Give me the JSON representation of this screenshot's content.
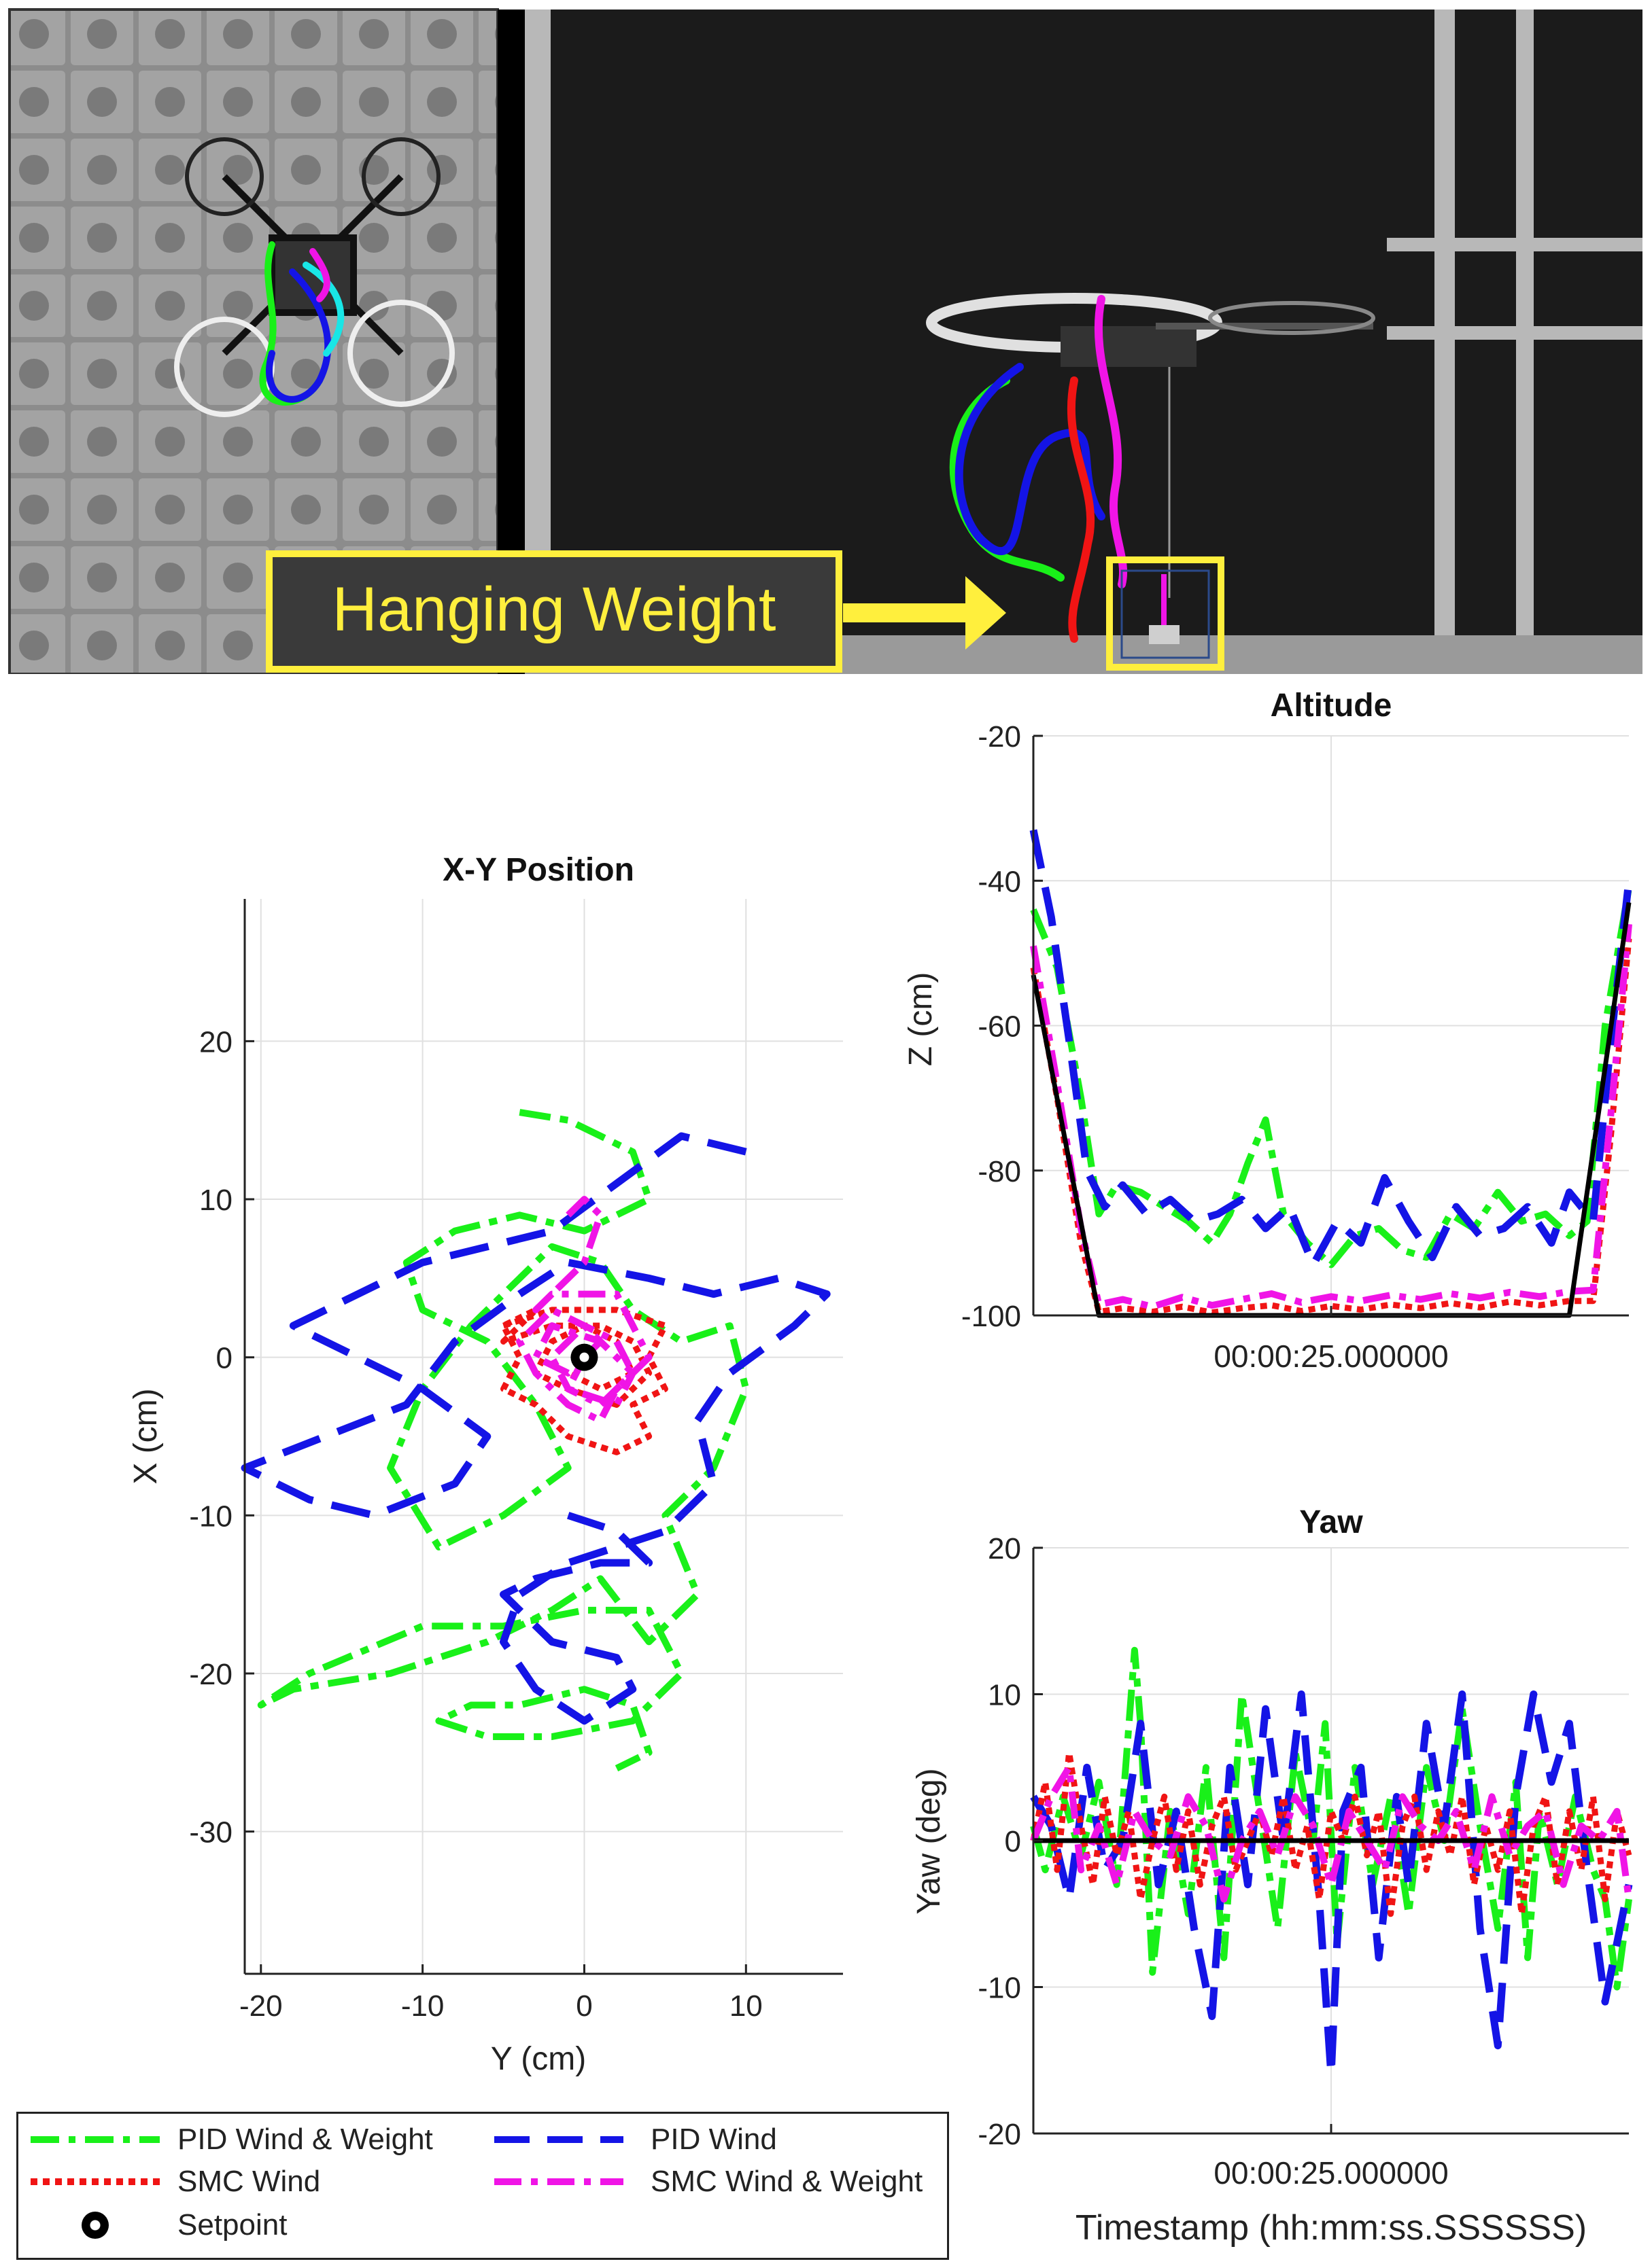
{
  "photo": {
    "callout_label": "Hanging Weight",
    "callout_color": "#ffef3d"
  },
  "colors": {
    "pid_wind_weight": "#19f019",
    "pid_wind": "#1414e6",
    "smc_wind": "#f01414",
    "smc_wind_weight": "#f014e6",
    "setpoint": "#000000"
  },
  "chart_data": [
    {
      "id": "xy",
      "type": "line",
      "title": "X-Y Position",
      "xlabel": "Y (cm)",
      "ylabel": "X (cm)",
      "xlim": [
        -21,
        16
      ],
      "ylim": [
        -39,
        29
      ],
      "xticks": [
        -20,
        -10,
        0,
        10
      ],
      "yticks": [
        20,
        10,
        0,
        -10,
        -20,
        -30
      ],
      "grid": true,
      "setpoint": {
        "x": 0,
        "y": 0
      },
      "series": [
        {
          "name": "PID Wind & Weight",
          "key": "pid_wind_weight",
          "x": [
            -4,
            -1,
            3,
            4,
            0,
            -4,
            -8,
            -11,
            -10,
            -6,
            -3,
            -1,
            -5,
            -9,
            -12,
            -10,
            -7,
            -4,
            -2,
            1,
            3,
            6,
            9,
            10,
            8,
            5,
            7,
            4,
            1,
            -2,
            -6,
            -12,
            -18,
            -20,
            -17,
            -10,
            -5,
            0,
            4,
            6,
            3,
            -2,
            -6,
            -9,
            -7,
            -4,
            0,
            3,
            4,
            2
          ],
          "y": [
            15.5,
            15,
            13,
            10,
            8,
            9,
            8,
            6,
            3,
            1,
            -3,
            -7,
            -10,
            -12,
            -7,
            -2,
            2,
            5,
            7,
            6,
            3,
            1,
            2,
            -2,
            -7,
            -10,
            -15,
            -18,
            -14,
            -16,
            -18,
            -20,
            -21,
            -22,
            -20,
            -17,
            -17,
            -16,
            -16,
            -20,
            -23,
            -24,
            -24,
            -23,
            -22,
            -22,
            -21,
            -22,
            -25,
            -26
          ]
        },
        {
          "name": "PID Wind",
          "key": "pid_wind",
          "x": [
            10,
            6,
            2,
            -2,
            -6,
            -10,
            -16,
            -18,
            -14,
            -10,
            -6,
            -8,
            -13,
            -17,
            -21,
            -16,
            -11,
            -8,
            -4,
            -1,
            4,
            8,
            12,
            15,
            13,
            9,
            7,
            8,
            5,
            2,
            -1,
            -4,
            -5,
            -3,
            0,
            3,
            2,
            -2,
            -4,
            -5,
            -3,
            1,
            4,
            2,
            -1
          ],
          "y": [
            13,
            14,
            11,
            8,
            7,
            6,
            3,
            2,
            0,
            -2,
            -5,
            -8,
            -10,
            -9,
            -7,
            -5,
            -3,
            1,
            4,
            6,
            5,
            4,
            5,
            4,
            2,
            -1,
            -4,
            -8,
            -11,
            -12,
            -13,
            -15,
            -18,
            -21,
            -23,
            -21,
            -19,
            -18,
            -16,
            -15,
            -14,
            -13,
            -13,
            -11,
            -10
          ]
        },
        {
          "name": "SMC Wind",
          "key": "smc_wind",
          "x": [
            -5,
            -2,
            2,
            5,
            4,
            5,
            3,
            4,
            2,
            -1,
            -3,
            -5,
            -4,
            -5,
            -3,
            -5,
            -2,
            1,
            3,
            4,
            2,
            -1,
            -3,
            -2,
            0,
            2,
            3,
            1,
            -1
          ],
          "y": [
            2,
            3,
            3,
            2,
            0,
            -2,
            -3,
            -5,
            -6,
            -5,
            -3,
            -2,
            0,
            2,
            3,
            1,
            2,
            2,
            1,
            -1,
            -3,
            -2,
            -1,
            1,
            2,
            1,
            -1,
            -2,
            -1
          ]
        },
        {
          "name": "SMC Wind & Weight",
          "key": "smc_wind_weight",
          "x": [
            -1,
            0,
            1,
            0,
            -3,
            -2,
            2,
            3,
            4,
            2,
            1,
            -1,
            -3,
            -4,
            -2,
            0,
            2,
            3,
            1,
            -1,
            -2,
            0,
            1,
            -1,
            -3,
            -2,
            1,
            3,
            2,
            -1,
            0
          ],
          "y": [
            9,
            10,
            9,
            6,
            3,
            4,
            4,
            2,
            0,
            -2,
            -4,
            -3,
            -1,
            1,
            3,
            2,
            1,
            -1,
            -3,
            -2,
            0,
            2,
            1,
            -1,
            0,
            2,
            1,
            -1,
            -3,
            -2,
            0
          ]
        }
      ]
    },
    {
      "id": "alt",
      "type": "line",
      "title": "Altitude",
      "xlabel": "00:00:25.000000",
      "ylabel": "Z (cm)",
      "xlim": [
        0,
        100
      ],
      "ylim": [
        -100,
        -20
      ],
      "yticks": [
        -20,
        -40,
        -60,
        -80,
        -100
      ],
      "grid": true,
      "series": [
        {
          "name": "PID Wind & Weight",
          "key": "pid_wind_weight",
          "x": [
            0,
            4,
            8,
            11,
            14,
            18,
            22,
            26,
            30,
            33,
            36,
            39,
            42,
            46,
            50,
            54,
            58,
            62,
            66,
            70,
            74,
            78,
            82,
            86,
            90,
            93,
            96,
            100
          ],
          "y": [
            -44,
            -52,
            -70,
            -86,
            -82,
            -83,
            -85,
            -87,
            -90,
            -86,
            -79,
            -73,
            -86,
            -90,
            -93,
            -89,
            -88,
            -91,
            -92,
            -86,
            -88,
            -83,
            -87,
            -86,
            -89,
            -87,
            -60,
            -41
          ]
        },
        {
          "name": "PID Wind",
          "key": "pid_wind",
          "x": [
            0,
            3,
            6,
            9,
            12,
            15,
            19,
            23,
            27,
            31,
            35,
            39,
            43,
            47,
            51,
            55,
            59,
            63,
            67,
            71,
            75,
            79,
            83,
            87,
            90,
            94,
            97,
            100
          ],
          "y": [
            -33,
            -45,
            -62,
            -80,
            -85,
            -82,
            -86,
            -84,
            -87,
            -86,
            -84,
            -88,
            -85,
            -93,
            -87,
            -90,
            -81,
            -87,
            -92,
            -85,
            -89,
            -88,
            -85,
            -90,
            -83,
            -87,
            -62,
            -40
          ]
        },
        {
          "name": "SMC Wind",
          "key": "smc_wind",
          "x": [
            0,
            4,
            8,
            11,
            15,
            20,
            25,
            30,
            35,
            40,
            45,
            50,
            55,
            60,
            65,
            70,
            75,
            80,
            85,
            90,
            94,
            97,
            100
          ],
          "y": [
            -52,
            -70,
            -90,
            -99.5,
            -99,
            -99.5,
            -98.8,
            -99.6,
            -99,
            -98.6,
            -99.4,
            -98.7,
            -99.2,
            -98.5,
            -99,
            -98.3,
            -98.9,
            -98.1,
            -98.6,
            -98,
            -98,
            -75,
            -48
          ]
        },
        {
          "name": "SMC Wind & Weight",
          "key": "smc_wind_weight",
          "x": [
            0,
            4,
            8,
            11,
            15,
            20,
            25,
            30,
            35,
            40,
            45,
            50,
            55,
            60,
            65,
            70,
            75,
            80,
            85,
            90,
            94,
            97,
            100
          ],
          "y": [
            -49,
            -68,
            -88,
            -98.5,
            -97.8,
            -98.8,
            -97.5,
            -98.6,
            -97.8,
            -97,
            -98.2,
            -97.4,
            -98,
            -97.2,
            -97.8,
            -97,
            -97.6,
            -96.8,
            -97.4,
            -96.7,
            -96.5,
            -72,
            -46
          ]
        },
        {
          "name": "Setpoint",
          "key": "setpoint",
          "x": [
            0,
            11,
            90,
            100
          ],
          "y": [
            -53,
            -100,
            -100,
            -43
          ]
        }
      ]
    },
    {
      "id": "yaw",
      "type": "line",
      "title": "Yaw",
      "xlabel": "00:00:25.000000",
      "xlabel2": "Timestamp (hh:mm:ss.SSSSSS)",
      "ylabel": "Yaw (deg)",
      "xlim": [
        0,
        100
      ],
      "ylim": [
        -20,
        20
      ],
      "yticks": [
        20,
        10,
        0,
        -10,
        -20
      ],
      "grid": true,
      "series": [
        {
          "name": "PID Wind & Weight",
          "key": "pid_wind_weight",
          "x": [
            0,
            2,
            5,
            8,
            11,
            14,
            17,
            18,
            20,
            23,
            26,
            29,
            32,
            35,
            38,
            41,
            44,
            47,
            49,
            51,
            54,
            57,
            60,
            63,
            66,
            69,
            72,
            75,
            78,
            81,
            83,
            85,
            88,
            91,
            94,
            96,
            98,
            100
          ],
          "y": [
            1,
            -2,
            3,
            -1,
            4,
            -3,
            13,
            8,
            -9,
            2,
            -5,
            5,
            -8,
            10,
            2,
            -6,
            6,
            0,
            8,
            -7,
            5,
            -3,
            3,
            -5,
            5,
            0,
            9,
            1,
            -6,
            4,
            -8,
            2,
            -3,
            3,
            -2,
            -4,
            -10,
            -4
          ]
        },
        {
          "name": "PID Wind",
          "key": "pid_wind",
          "x": [
            0,
            3,
            6,
            9,
            12,
            15,
            18,
            21,
            24,
            27,
            30,
            33,
            36,
            39,
            42,
            45,
            48,
            50,
            52,
            55,
            58,
            61,
            63,
            66,
            69,
            72,
            75,
            78,
            81,
            84,
            87,
            90,
            93,
            96,
            99,
            100
          ],
          "y": [
            3,
            1,
            -4,
            5,
            -2,
            0,
            8,
            -3,
            2,
            -6,
            -12,
            5,
            -3,
            9,
            0,
            10,
            -4,
            -16,
            2,
            5,
            -8,
            3,
            -3,
            8,
            1,
            10,
            -6,
            -14,
            3,
            10,
            4,
            8,
            -2,
            -11,
            -5,
            -3
          ]
        },
        {
          "name": "SMC Wind",
          "key": "smc_wind",
          "x": [
            0,
            2,
            4,
            6,
            8,
            10,
            12,
            14,
            16,
            18,
            20,
            22,
            24,
            26,
            28,
            30,
            32,
            34,
            36,
            38,
            40,
            42,
            44,
            46,
            48,
            50,
            52,
            54,
            56,
            58,
            60,
            62,
            64,
            66,
            68,
            70,
            72,
            74,
            76,
            78,
            80,
            82,
            84,
            86,
            88,
            90,
            92,
            94,
            96,
            98,
            100
          ],
          "y": [
            0,
            4,
            -2,
            6,
            1,
            -3,
            3,
            -1,
            2,
            -4,
            0,
            3,
            -2,
            2,
            -3,
            1,
            3,
            -2,
            0,
            2,
            -1,
            3,
            -2,
            1,
            -4,
            2,
            0,
            3,
            -1,
            2,
            -5,
            1,
            3,
            -2,
            2,
            -1,
            3,
            -3,
            1,
            -2,
            2,
            -5,
            1,
            3,
            -3,
            2,
            -2,
            3,
            -4,
            2,
            -1
          ]
        },
        {
          "name": "SMC Wind & Weight",
          "key": "smc_wind_weight",
          "x": [
            0,
            3,
            6,
            8,
            11,
            14,
            17,
            20,
            23,
            26,
            29,
            32,
            35,
            38,
            41,
            44,
            47,
            50,
            53,
            56,
            59,
            62,
            65,
            68,
            71,
            74,
            77,
            80,
            83,
            86,
            89,
            92,
            95,
            98,
            100
          ],
          "y": [
            0,
            3,
            5,
            -2,
            1,
            -3,
            2,
            0,
            -1,
            3,
            1,
            -4,
            0,
            2,
            -1,
            3,
            1,
            -3,
            2,
            0,
            -2,
            3,
            1,
            0,
            2,
            -2,
            3,
            -1,
            1,
            2,
            -3,
            1,
            0,
            2,
            -4
          ]
        },
        {
          "name": "Setpoint",
          "key": "setpoint",
          "x": [
            0,
            100
          ],
          "y": [
            0,
            0
          ]
        }
      ]
    }
  ],
  "legend": {
    "items": [
      {
        "label": "PID Wind & Weight",
        "key": "pid_wind_weight"
      },
      {
        "label": "PID Wind",
        "key": "pid_wind"
      },
      {
        "label": "SMC Wind",
        "key": "smc_wind"
      },
      {
        "label": "SMC Wind & Weight",
        "key": "smc_wind_weight"
      },
      {
        "label": "Setpoint",
        "key": "setpoint"
      }
    ]
  }
}
